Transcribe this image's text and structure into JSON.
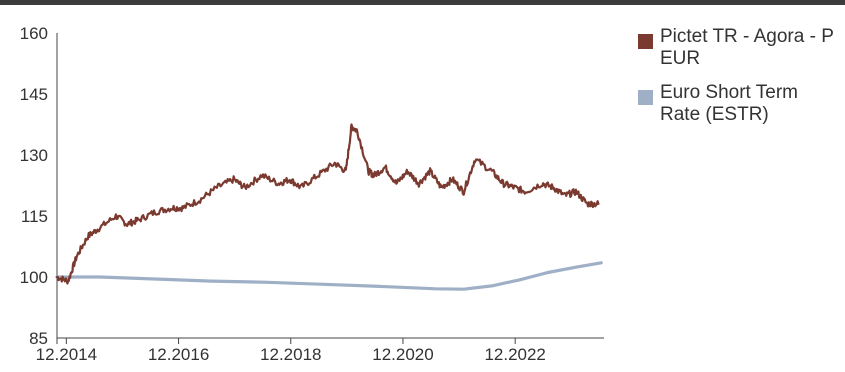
{
  "chart_data": {
    "type": "line",
    "x_ticks": [
      "12.2014",
      "12.2016",
      "12.2018",
      "12.2020",
      "12.2022"
    ],
    "y_ticks": [
      "160",
      "145",
      "130",
      "115",
      "100",
      "85"
    ],
    "ylim": [
      85,
      160
    ],
    "xlim": [
      "2014-10",
      "2024-07"
    ],
    "grid": false,
    "legend_position": "right",
    "series": [
      {
        "name": "Pictet TR - Agora - P EUR",
        "color": "#7b3a30",
        "x": [
          2014.75,
          2014.95,
          2015.1,
          2015.3,
          2015.5,
          2015.8,
          2016.0,
          2016.2,
          2016.5,
          2016.8,
          2017.0,
          2017.3,
          2017.6,
          2017.9,
          2018.1,
          2018.4,
          2018.7,
          2018.9,
          2019.1,
          2019.4,
          2019.7,
          2019.9,
          2020.0,
          2020.1,
          2020.3,
          2020.4,
          2020.6,
          2020.8,
          2021.0,
          2021.2,
          2021.4,
          2021.6,
          2021.8,
          2022.0,
          2022.2,
          2022.5,
          2022.7,
          2022.9,
          2023.1,
          2023.4,
          2023.6,
          2023.8,
          2024.0,
          2024.2,
          2024.4
        ],
        "y": [
          100,
          99,
          105,
          110,
          112,
          115,
          113,
          114,
          116,
          117,
          117,
          119,
          122,
          124,
          122,
          125,
          123,
          124,
          122,
          125,
          128,
          126,
          137,
          136,
          126,
          125,
          127,
          123,
          126,
          123,
          126,
          122,
          124,
          121,
          129,
          126,
          123,
          122,
          121,
          123,
          122,
          120,
          121,
          118,
          118
        ]
      },
      {
        "name": "Euro Short Term Rate (ESTR)",
        "color": "#9fb0c6",
        "x": [
          2014.75,
          2015.5,
          2016.5,
          2017.5,
          2018.5,
          2019.5,
          2020.5,
          2021.5,
          2022.0,
          2022.5,
          2023.0,
          2023.5,
          2024.0,
          2024.45
        ],
        "y": [
          100,
          100,
          99.5,
          99,
          98.7,
          98.2,
          97.7,
          97.1,
          97.0,
          97.8,
          99.3,
          101.1,
          102.4,
          103.5
        ]
      }
    ]
  }
}
